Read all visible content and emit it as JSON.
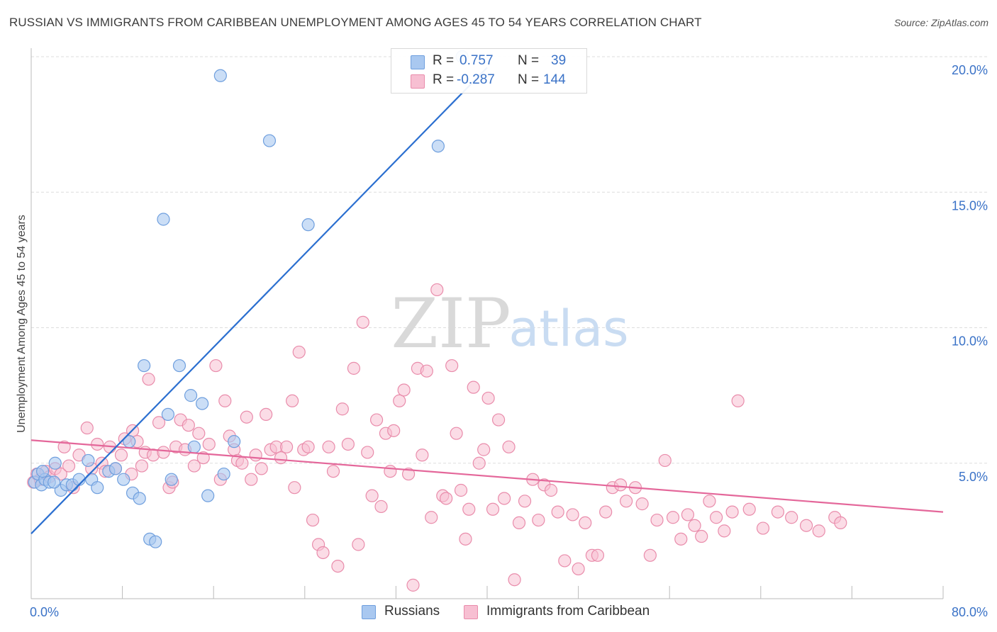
{
  "header": {
    "title": "RUSSIAN VS IMMIGRANTS FROM CARIBBEAN UNEMPLOYMENT AMONG AGES 45 TO 54 YEARS CORRELATION CHART",
    "source": "Source: ZipAtlas.com"
  },
  "watermark": {
    "zip": "ZIP",
    "atlas": "atlas"
  },
  "legend": {
    "r_label": "R =",
    "n_label": "N =",
    "russians": {
      "r": "0.757",
      "n": "39"
    },
    "caribbean": {
      "r": "-0.287",
      "n": "144"
    }
  },
  "bottom_legend": {
    "russians": "Russians",
    "caribbean": "Immigrants from Caribbean"
  },
  "colors": {
    "russians_fill": "#a9c8f0",
    "russians_stroke": "#6f9fde",
    "russians_line": "#2b6fd0",
    "caribbean_fill": "#f7bfd2",
    "caribbean_stroke": "#e98cab",
    "caribbean_line": "#e4679a",
    "tick_label": "#3a72c7",
    "grid": "#dddddd"
  },
  "chart_data": {
    "type": "scatter",
    "title": "RUSSIAN VS IMMIGRANTS FROM CARIBBEAN UNEMPLOYMENT AMONG AGES 45 TO 54 YEARS CORRELATION CHART",
    "xlabel": "",
    "ylabel": "Unemployment Among Ages 45 to 54 years",
    "xlim": [
      0,
      80
    ],
    "ylim": [
      0,
      20
    ],
    "x_tick_labels": [
      "0.0%",
      "80.0%"
    ],
    "y_ticks": [
      5,
      10,
      15,
      20
    ],
    "y_tick_labels": [
      "5.0%",
      "10.0%",
      "15.0%",
      "20.0%"
    ],
    "grid": true,
    "legend_position": "top-center",
    "series": [
      {
        "name": "Russians",
        "r": 0.757,
        "n": 39,
        "trend": {
          "x": [
            0,
            40
          ],
          "y": [
            2.4,
            19.6
          ]
        },
        "points": [
          [
            0.3,
            4.3
          ],
          [
            0.6,
            4.6
          ],
          [
            0.9,
            4.2
          ],
          [
            1.2,
            4.4
          ],
          [
            1.6,
            4.3
          ],
          [
            2.1,
            5.0
          ],
          [
            2.6,
            4.0
          ],
          [
            3.1,
            4.2
          ],
          [
            3.6,
            4.2
          ],
          [
            4.2,
            4.4
          ],
          [
            5.0,
            5.1
          ],
          [
            5.3,
            4.4
          ],
          [
            5.8,
            4.1
          ],
          [
            6.8,
            4.7
          ],
          [
            7.4,
            4.8
          ],
          [
            8.1,
            4.4
          ],
          [
            8.6,
            5.8
          ],
          [
            8.9,
            3.9
          ],
          [
            9.5,
            3.7
          ],
          [
            9.9,
            8.6
          ],
          [
            10.4,
            2.2
          ],
          [
            10.9,
            2.1
          ],
          [
            11.6,
            14.0
          ],
          [
            12.0,
            6.8
          ],
          [
            12.3,
            4.4
          ],
          [
            13.0,
            8.6
          ],
          [
            14.0,
            7.5
          ],
          [
            14.3,
            5.6
          ],
          [
            15.0,
            7.2
          ],
          [
            15.5,
            3.8
          ],
          [
            16.6,
            19.3
          ],
          [
            16.9,
            4.6
          ],
          [
            17.8,
            5.8
          ],
          [
            20.9,
            16.9
          ],
          [
            24.3,
            13.8
          ],
          [
            35.7,
            16.7
          ],
          [
            37.8,
            20.0
          ],
          [
            1.0,
            4.7
          ],
          [
            2.0,
            4.3
          ]
        ]
      },
      {
        "name": "Immigrants from Caribbean",
        "r": -0.287,
        "n": 144,
        "trend": {
          "x": [
            0,
            80
          ],
          "y": [
            5.85,
            3.2
          ]
        },
        "points": [
          [
            0.2,
            4.3
          ],
          [
            0.5,
            4.6
          ],
          [
            0.8,
            4.4
          ],
          [
            1.3,
            4.7
          ],
          [
            1.6,
            4.5
          ],
          [
            2.1,
            4.8
          ],
          [
            2.6,
            4.6
          ],
          [
            2.9,
            5.6
          ],
          [
            3.3,
            4.9
          ],
          [
            3.7,
            4.1
          ],
          [
            4.2,
            5.3
          ],
          [
            4.9,
            6.3
          ],
          [
            5.3,
            4.8
          ],
          [
            5.8,
            5.7
          ],
          [
            6.2,
            5.0
          ],
          [
            6.5,
            4.7
          ],
          [
            6.9,
            5.6
          ],
          [
            7.4,
            4.8
          ],
          [
            7.9,
            5.3
          ],
          [
            8.2,
            5.9
          ],
          [
            8.8,
            4.6
          ],
          [
            8.9,
            6.2
          ],
          [
            9.3,
            5.8
          ],
          [
            9.7,
            4.9
          ],
          [
            10.0,
            5.4
          ],
          [
            10.3,
            8.1
          ],
          [
            10.7,
            5.3
          ],
          [
            11.2,
            6.5
          ],
          [
            11.6,
            5.4
          ],
          [
            12.1,
            4.1
          ],
          [
            12.4,
            4.3
          ],
          [
            12.7,
            5.6
          ],
          [
            13.1,
            6.6
          ],
          [
            13.5,
            5.5
          ],
          [
            13.8,
            6.4
          ],
          [
            14.3,
            4.9
          ],
          [
            14.7,
            6.1
          ],
          [
            15.1,
            5.2
          ],
          [
            15.6,
            5.7
          ],
          [
            16.2,
            8.6
          ],
          [
            16.6,
            4.4
          ],
          [
            17.0,
            7.3
          ],
          [
            17.4,
            6.0
          ],
          [
            17.8,
            5.5
          ],
          [
            18.1,
            5.1
          ],
          [
            18.5,
            5.0
          ],
          [
            18.9,
            6.7
          ],
          [
            19.3,
            4.4
          ],
          [
            19.7,
            5.3
          ],
          [
            20.2,
            4.8
          ],
          [
            20.6,
            6.8
          ],
          [
            21.0,
            5.5
          ],
          [
            21.5,
            5.6
          ],
          [
            21.9,
            5.2
          ],
          [
            22.4,
            5.6
          ],
          [
            22.9,
            7.3
          ],
          [
            23.1,
            4.1
          ],
          [
            23.5,
            9.1
          ],
          [
            23.9,
            5.5
          ],
          [
            24.3,
            5.6
          ],
          [
            24.7,
            2.9
          ],
          [
            25.2,
            2.0
          ],
          [
            25.6,
            1.7
          ],
          [
            26.1,
            5.6
          ],
          [
            26.5,
            4.7
          ],
          [
            26.9,
            1.2
          ],
          [
            27.3,
            7.0
          ],
          [
            27.8,
            5.7
          ],
          [
            28.3,
            8.5
          ],
          [
            28.7,
            2.0
          ],
          [
            29.1,
            10.2
          ],
          [
            29.5,
            5.4
          ],
          [
            29.9,
            3.8
          ],
          [
            30.3,
            6.6
          ],
          [
            30.7,
            3.4
          ],
          [
            31.1,
            6.1
          ],
          [
            31.5,
            4.7
          ],
          [
            31.8,
            6.2
          ],
          [
            32.3,
            7.3
          ],
          [
            32.7,
            7.7
          ],
          [
            33.1,
            4.6
          ],
          [
            33.5,
            0.5
          ],
          [
            33.9,
            8.5
          ],
          [
            34.3,
            5.3
          ],
          [
            34.7,
            8.4
          ],
          [
            35.1,
            3.0
          ],
          [
            35.6,
            11.4
          ],
          [
            36.1,
            3.8
          ],
          [
            36.4,
            3.7
          ],
          [
            36.9,
            8.6
          ],
          [
            37.3,
            6.1
          ],
          [
            37.7,
            4.0
          ],
          [
            38.1,
            2.2
          ],
          [
            38.4,
            3.3
          ],
          [
            38.8,
            7.8
          ],
          [
            39.3,
            5.0
          ],
          [
            39.7,
            5.5
          ],
          [
            40.1,
            7.4
          ],
          [
            40.5,
            3.3
          ],
          [
            41.0,
            6.6
          ],
          [
            41.5,
            3.7
          ],
          [
            41.9,
            5.6
          ],
          [
            42.4,
            0.7
          ],
          [
            42.8,
            2.8
          ],
          [
            43.3,
            3.6
          ],
          [
            44.0,
            4.4
          ],
          [
            44.5,
            2.9
          ],
          [
            45.0,
            4.2
          ],
          [
            45.6,
            4.0
          ],
          [
            46.2,
            3.2
          ],
          [
            46.8,
            1.4
          ],
          [
            47.5,
            3.1
          ],
          [
            48.0,
            1.1
          ],
          [
            48.6,
            2.8
          ],
          [
            49.2,
            1.6
          ],
          [
            49.7,
            1.6
          ],
          [
            50.4,
            3.2
          ],
          [
            51.0,
            4.1
          ],
          [
            51.7,
            4.2
          ],
          [
            52.2,
            3.6
          ],
          [
            53.0,
            4.1
          ],
          [
            53.6,
            3.5
          ],
          [
            54.3,
            1.6
          ],
          [
            54.9,
            2.9
          ],
          [
            55.6,
            5.1
          ],
          [
            56.3,
            3.0
          ],
          [
            57.0,
            2.2
          ],
          [
            57.6,
            3.1
          ],
          [
            58.2,
            2.7
          ],
          [
            58.8,
            2.3
          ],
          [
            59.5,
            3.6
          ],
          [
            60.1,
            3.0
          ],
          [
            60.8,
            2.5
          ],
          [
            61.5,
            3.2
          ],
          [
            62.0,
            7.3
          ],
          [
            63.0,
            3.3
          ],
          [
            64.2,
            2.6
          ],
          [
            65.5,
            3.2
          ],
          [
            66.7,
            3.0
          ],
          [
            68.0,
            2.7
          ],
          [
            69.1,
            2.5
          ],
          [
            70.5,
            3.0
          ],
          [
            71.0,
            2.8
          ]
        ]
      }
    ]
  }
}
